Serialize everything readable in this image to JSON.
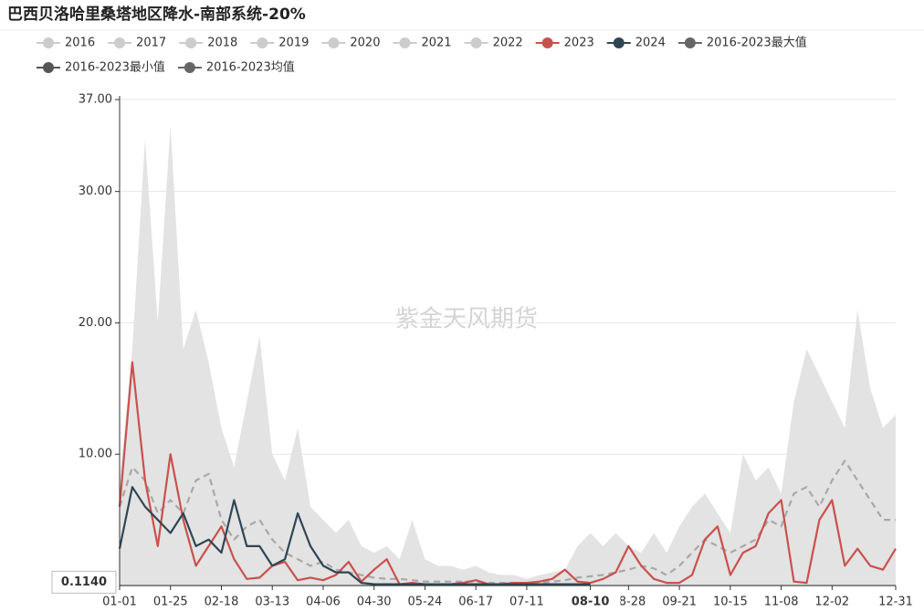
{
  "chart_data": {
    "type": "line",
    "title": "巴西贝洛哈里桑塔地区降水-南部系统-20%",
    "watermark": "紫金天风期货",
    "categories": [
      "01-01",
      null,
      null,
      null,
      "01-25",
      null,
      null,
      null,
      "02-18",
      null,
      null,
      null,
      "03-13",
      null,
      null,
      null,
      "04-06",
      null,
      null,
      null,
      "04-30",
      null,
      null,
      null,
      "05-24",
      null,
      null,
      null,
      "06-17",
      null,
      null,
      null,
      "07-11",
      null,
      null,
      null,
      null,
      "08-10",
      null,
      null,
      "08-28",
      null,
      null,
      null,
      "09-21",
      null,
      null,
      null,
      "10-15",
      null,
      null,
      null,
      "11-08",
      null,
      null,
      null,
      "12-02",
      null,
      null,
      null,
      null,
      "12-31"
    ],
    "ylim": [
      0,
      37
    ],
    "yticks": [
      {
        "value": 10,
        "label": "10.00"
      },
      {
        "value": 20,
        "label": "20.00"
      },
      {
        "value": 30,
        "label": "30.00"
      },
      {
        "value": 37,
        "label": "37.00"
      }
    ],
    "y_pointer": {
      "value": 0.114,
      "label": "0.1140"
    },
    "x_pointer_category": "08-10",
    "grid": true,
    "series": [
      {
        "name": "2016",
        "color": "#cccccc",
        "hidden": true
      },
      {
        "name": "2017",
        "color": "#cccccc",
        "hidden": true
      },
      {
        "name": "2018",
        "color": "#cccccc",
        "hidden": true
      },
      {
        "name": "2019",
        "color": "#cccccc",
        "hidden": true
      },
      {
        "name": "2020",
        "color": "#cccccc",
        "hidden": true
      },
      {
        "name": "2021",
        "color": "#cccccc",
        "hidden": true
      },
      {
        "name": "2022",
        "color": "#cccccc",
        "hidden": true
      },
      {
        "name": "2023",
        "color": "#c9514d",
        "style": "line",
        "values": [
          6,
          17,
          8,
          3,
          10,
          5,
          1.5,
          3,
          4.5,
          2,
          0.5,
          0.6,
          1.5,
          1.8,
          0.4,
          0.6,
          0.4,
          0.8,
          1.8,
          0.3,
          1.2,
          2,
          0.1,
          0.2,
          0.1,
          0.1,
          0.1,
          0.2,
          0.4,
          0.1,
          0.1,
          0.2,
          0.2,
          0.3,
          0.5,
          1.2,
          0.3,
          0.2,
          0.5,
          1,
          3,
          1.5,
          0.5,
          0.2,
          0.2,
          0.8,
          3.5,
          4.5,
          0.8,
          2.5,
          3,
          5.5,
          6.5,
          0.3,
          0.2,
          5,
          6.5,
          1.5,
          2.8,
          1.5,
          1.2,
          2.8
        ]
      },
      {
        "name": "2024",
        "color": "#2f4554",
        "style": "line",
        "values": [
          2.8,
          7.5,
          6,
          5,
          4,
          5.5,
          3,
          3.5,
          2.5,
          6.5,
          3,
          3,
          1.5,
          2,
          5.5,
          3,
          1.5,
          1,
          1,
          0.2,
          0.1,
          0.1,
          0.1,
          0.1,
          0.1,
          0.1,
          0.1,
          0.1,
          0.1,
          0.1,
          0.1,
          0.1,
          0.1,
          0.1,
          0.1,
          0.1,
          0.1,
          0.1,
          null,
          null,
          null,
          null,
          null,
          null,
          null,
          null,
          null,
          null,
          null,
          null,
          null,
          null,
          null,
          null,
          null,
          null,
          null,
          null,
          null,
          null,
          null,
          null
        ]
      },
      {
        "name": "2016-2023最大值",
        "color": "#666666",
        "style": "area",
        "area_color": "#e3e3e3",
        "values": [
          8,
          18,
          34,
          20,
          35,
          18,
          21,
          17,
          12,
          9,
          14,
          19,
          10,
          8,
          12,
          6,
          5,
          4,
          5,
          3,
          2.5,
          3,
          2,
          5,
          2,
          1.5,
          1.5,
          1.2,
          1.5,
          1,
          0.8,
          0.8,
          0.5,
          0.8,
          1,
          1.2,
          3,
          4,
          3,
          4,
          3,
          2.5,
          4,
          2.5,
          4.5,
          6,
          7,
          5.5,
          4,
          10,
          8,
          9,
          7,
          14,
          18,
          16,
          14,
          12,
          21,
          15,
          12,
          13
        ]
      },
      {
        "name": "2016-2023最小值",
        "color": "#555555",
        "style": "line",
        "line_color": "#dcdcdc",
        "values": [
          0,
          0,
          0,
          0,
          0,
          0,
          0,
          0,
          0,
          0,
          0,
          0,
          0,
          0,
          0,
          0,
          0,
          0,
          0,
          0,
          0,
          0,
          0,
          0,
          0,
          0,
          0,
          0,
          0,
          0,
          0,
          0,
          0,
          0,
          0,
          0,
          0,
          0,
          0,
          0,
          0,
          0,
          0,
          0,
          0,
          0,
          0,
          0,
          0,
          0,
          0,
          0,
          0,
          0,
          0,
          0,
          0,
          0,
          0,
          0,
          0,
          0
        ]
      },
      {
        "name": "2016-2023均值",
        "color": "#666666",
        "style": "dashed",
        "line_color": "#a8a8a8",
        "values": [
          6,
          9,
          8,
          5.5,
          6.5,
          5.5,
          8,
          8.5,
          5,
          3.5,
          4.5,
          5,
          3.5,
          2.5,
          2,
          1.5,
          1.8,
          1.2,
          1,
          0.8,
          0.6,
          0.5,
          0.5,
          0.4,
          0.3,
          0.3,
          0.3,
          0.3,
          0.3,
          0.2,
          0.2,
          0.2,
          0.2,
          0.2,
          0.3,
          0.4,
          0.6,
          0.7,
          0.8,
          1,
          1.2,
          1.5,
          1.3,
          0.8,
          1.5,
          2.5,
          3.5,
          3,
          2.5,
          3,
          3.5,
          5,
          4.5,
          7,
          7.5,
          6,
          8,
          9.5,
          8,
          6.5,
          5,
          5
        ]
      }
    ]
  }
}
